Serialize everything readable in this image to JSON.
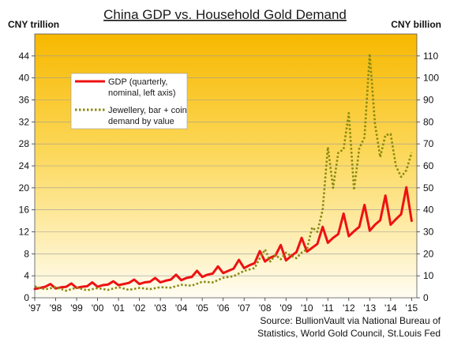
{
  "chart_data": {
    "type": "line",
    "title": "China GDP vs. Household Gold Demand",
    "left_axis_unit": "CNY trillion",
    "right_axis_unit": "CNY billion",
    "x_ticks": [
      "'97",
      "'98",
      "'99",
      "'00",
      "'01",
      "'02",
      "'03",
      "'04",
      "'05",
      "'06",
      "'07",
      "'08",
      "'09",
      "'10",
      "'11",
      "'12",
      "'13",
      "'14",
      "'15"
    ],
    "y_left_ticks": [
      "0",
      "4",
      "8",
      "12",
      "16",
      "20",
      "24",
      "28",
      "32",
      "36",
      "40",
      "44"
    ],
    "y_right_ticks": [
      "0",
      "10",
      "20",
      "30",
      "40",
      "50",
      "60",
      "70",
      "80",
      "90",
      "100",
      "110"
    ],
    "ylim_left": [
      0,
      48
    ],
    "ylim_right": [
      0,
      120
    ],
    "xlim": [
      1997,
      2015.25
    ],
    "grid": true,
    "legend_position": "upper-left",
    "source_lines": [
      "Source: BullionVault via National Bureau of",
      "Statistics, World Gold Council, St.Louis Fed"
    ],
    "series": [
      {
        "name": "GDP (quarterly, nominal, left axis)",
        "axis": "left",
        "color": "#ee1111",
        "style": "solid",
        "x": [
          1997.0,
          1997.25,
          1997.5,
          1997.75,
          1998.0,
          1998.25,
          1998.5,
          1998.75,
          1999.0,
          1999.25,
          1999.5,
          1999.75,
          2000.0,
          2000.25,
          2000.5,
          2000.75,
          2001.0,
          2001.25,
          2001.5,
          2001.75,
          2002.0,
          2002.25,
          2002.5,
          2002.75,
          2003.0,
          2003.25,
          2003.5,
          2003.75,
          2004.0,
          2004.25,
          2004.5,
          2004.75,
          2005.0,
          2005.25,
          2005.5,
          2005.75,
          2006.0,
          2006.25,
          2006.5,
          2006.75,
          2007.0,
          2007.25,
          2007.5,
          2007.75,
          2008.0,
          2008.25,
          2008.5,
          2008.75,
          2009.0,
          2009.25,
          2009.5,
          2009.75,
          2010.0,
          2010.25,
          2010.5,
          2010.75,
          2011.0,
          2011.25,
          2011.5,
          2011.75,
          2012.0,
          2012.25,
          2012.5,
          2012.75,
          2013.0,
          2013.25,
          2013.5,
          2013.75,
          2014.0,
          2014.25,
          2014.5,
          2014.75,
          2015.0
        ],
        "values": [
          1.6,
          1.8,
          2.0,
          2.5,
          1.7,
          1.9,
          2.0,
          2.6,
          1.8,
          2.0,
          2.1,
          2.8,
          2.0,
          2.3,
          2.4,
          3.0,
          2.3,
          2.5,
          2.7,
          3.3,
          2.5,
          2.8,
          2.9,
          3.6,
          2.8,
          3.1,
          3.3,
          4.2,
          3.2,
          3.6,
          3.8,
          4.9,
          3.8,
          4.2,
          4.4,
          5.7,
          4.5,
          4.9,
          5.3,
          6.9,
          5.4,
          5.9,
          6.3,
          8.5,
          6.6,
          7.3,
          7.7,
          9.6,
          6.8,
          7.6,
          8.3,
          10.9,
          8.4,
          9.1,
          9.8,
          12.9,
          10.0,
          10.9,
          11.6,
          15.3,
          11.2,
          12.1,
          12.9,
          16.9,
          12.2,
          13.3,
          14.1,
          18.6,
          13.3,
          14.3,
          15.2,
          20.1,
          14.0
        ]
      },
      {
        "name": "Jewellery, bar + coin demand by value",
        "axis": "right",
        "color": "#8a8a10",
        "style": "dotted",
        "x": [
          1997.0,
          1997.5,
          1998.0,
          1998.5,
          1999.0,
          1999.5,
          2000.0,
          2000.5,
          2001.0,
          2001.5,
          2002.0,
          2002.5,
          2003.0,
          2003.5,
          2004.0,
          2004.5,
          2005.0,
          2005.5,
          2006.0,
          2006.5,
          2007.0,
          2007.5,
          2007.75,
          2008.0,
          2008.25,
          2008.5,
          2008.75,
          2009.0,
          2009.25,
          2009.5,
          2009.75,
          2010.0,
          2010.25,
          2010.5,
          2010.75,
          2011.0,
          2011.25,
          2011.5,
          2011.75,
          2012.0,
          2012.25,
          2012.5,
          2012.75,
          2013.0,
          2013.25,
          2013.5,
          2013.75,
          2014.0,
          2014.25,
          2014.5,
          2014.75,
          2015.0
        ],
        "values": [
          5.2,
          3.8,
          4.8,
          3.2,
          4.6,
          3.4,
          4.4,
          3.6,
          4.8,
          3.6,
          4.5,
          3.9,
          4.8,
          4.6,
          5.9,
          5.5,
          7.3,
          7.0,
          9.1,
          9.8,
          12.2,
          13.5,
          18.0,
          22.0,
          16.5,
          19.5,
          17.5,
          20.5,
          19.0,
          18.0,
          20.5,
          22.0,
          32.0,
          30.0,
          40.0,
          68.5,
          50.0,
          66.0,
          67.5,
          84.0,
          49.0,
          68.0,
          73.0,
          111.0,
          79.0,
          64.0,
          74.0,
          74.5,
          60.0,
          55.0,
          58.0,
          66.0
        ]
      }
    ]
  }
}
